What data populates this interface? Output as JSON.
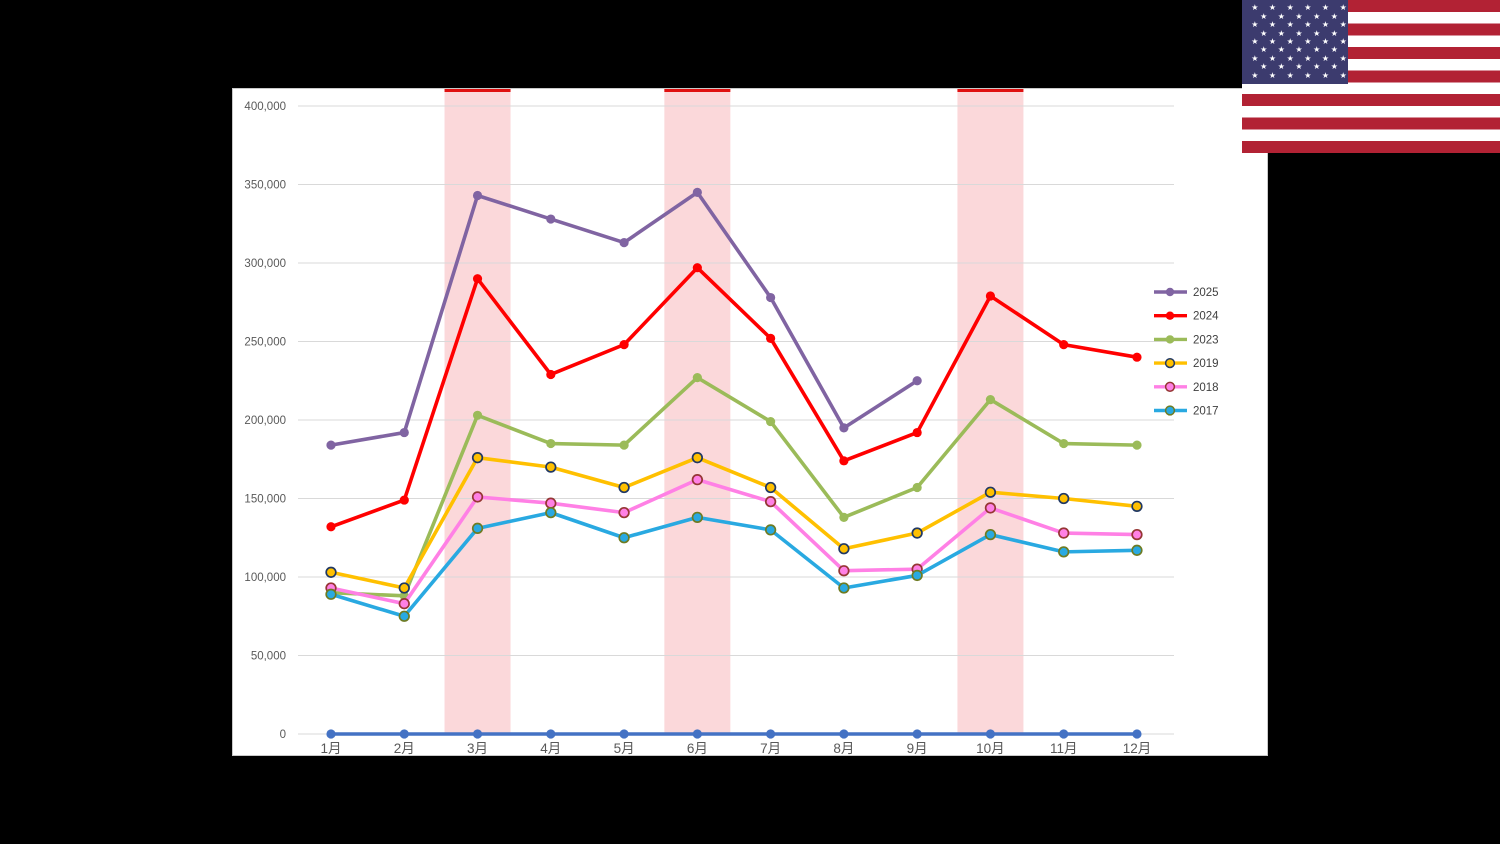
{
  "background_color": "#000000",
  "panel": {
    "background": "#FFFFFF",
    "border_color": "#C9C9C9"
  },
  "flag": {
    "name": "united-states-flag",
    "stripe_red": "#B22234",
    "canton_blue": "#3C3B6E",
    "star_white": "#FFFFFF",
    "stripe_count": 13,
    "star_rows": [
      6,
      5,
      6,
      5,
      6,
      5,
      6,
      5,
      6
    ]
  },
  "chart_data": {
    "type": "line",
    "title": "",
    "xlabel": "",
    "ylabel": "",
    "categories": [
      "1月",
      "2月",
      "3月",
      "4月",
      "5月",
      "6月",
      "7月",
      "8月",
      "9月",
      "10月",
      "11月",
      "12月"
    ],
    "ylim": [
      0,
      400000
    ],
    "ytick_step": 50000,
    "ytick_labels": [
      "0",
      "50,000",
      "100,000",
      "150,000",
      "200,000",
      "250,000",
      "300,000",
      "350,000",
      "400,000"
    ],
    "grid": true,
    "gridline_color": "#D9D9D9",
    "axis_text_color": "#595959",
    "legend_position": "right-inside",
    "legend_text_color": "#404040",
    "highlight_bands": {
      "months": [
        "3月",
        "6月",
        "10月"
      ],
      "fill": "#FBD8DA",
      "top_cap_color": "#E01010"
    },
    "series": [
      {
        "name": "2025",
        "color": "#8064A2",
        "marker": "dot",
        "values": [
          184000,
          192000,
          343000,
          328000,
          313000,
          345000,
          278000,
          195000,
          225000,
          null,
          null,
          null
        ],
        "in_legend": true
      },
      {
        "name": "2024",
        "color": "#FF0000",
        "marker": "dot",
        "values": [
          132000,
          149000,
          290000,
          229000,
          248000,
          297000,
          252000,
          174000,
          192000,
          279000,
          248000,
          240000
        ],
        "in_legend": true
      },
      {
        "name": "2023",
        "color": "#9BBB59",
        "marker": "dot",
        "values": [
          90000,
          88000,
          203000,
          185000,
          184000,
          227000,
          199000,
          138000,
          157000,
          213000,
          185000,
          184000
        ],
        "in_legend": true
      },
      {
        "name": "2019",
        "color": "#FFC000",
        "marker": "ring",
        "marker_stroke": "#203864",
        "values": [
          103000,
          93000,
          176000,
          170000,
          157000,
          176000,
          157000,
          118000,
          128000,
          154000,
          150000,
          145000
        ],
        "in_legend": true
      },
      {
        "name": "2018",
        "color": "#FF80E5",
        "marker": "ring",
        "marker_stroke": "#963634",
        "values": [
          93000,
          83000,
          151000,
          147000,
          141000,
          162000,
          148000,
          104000,
          105000,
          144000,
          128000,
          127000
        ],
        "in_legend": true
      },
      {
        "name": "2017",
        "color": "#29A9E1",
        "marker": "ring",
        "marker_stroke": "#6E7B22",
        "values": [
          89000,
          75000,
          131000,
          141000,
          125000,
          138000,
          130000,
          93000,
          101000,
          127000,
          116000,
          117000
        ],
        "in_legend": true
      },
      {
        "name": "",
        "color": "#4472C4",
        "marker": "dot",
        "values": [
          0,
          0,
          0,
          0,
          0,
          0,
          0,
          0,
          0,
          0,
          0,
          0
        ],
        "in_legend": false
      }
    ]
  }
}
